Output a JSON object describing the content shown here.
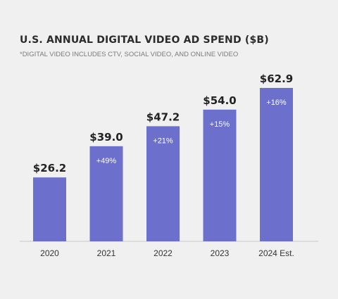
{
  "chart_data": {
    "type": "bar",
    "title": "U.S. ANNUAL DIGITAL VIDEO AD SPEND ($B)",
    "subtitle": "*DIGITAL VIDEO INCLUDES CTV, SOCIAL VIDEO, AND ONLINE VIDEO",
    "categories": [
      "2020",
      "2021",
      "2022",
      "2023",
      "2024 Est."
    ],
    "values": [
      26.2,
      39.0,
      47.2,
      54.0,
      62.9
    ],
    "value_labels": [
      "$26.2",
      "$39.0",
      "$47.2",
      "$54.0",
      "$62.9"
    ],
    "growth_labels": [
      "",
      "+49%",
      "+21%",
      "+15%",
      "+16%"
    ],
    "bar_color": "#6c6fcb",
    "ylim": [
      0,
      70
    ],
    "grid": false,
    "legend": "none"
  }
}
